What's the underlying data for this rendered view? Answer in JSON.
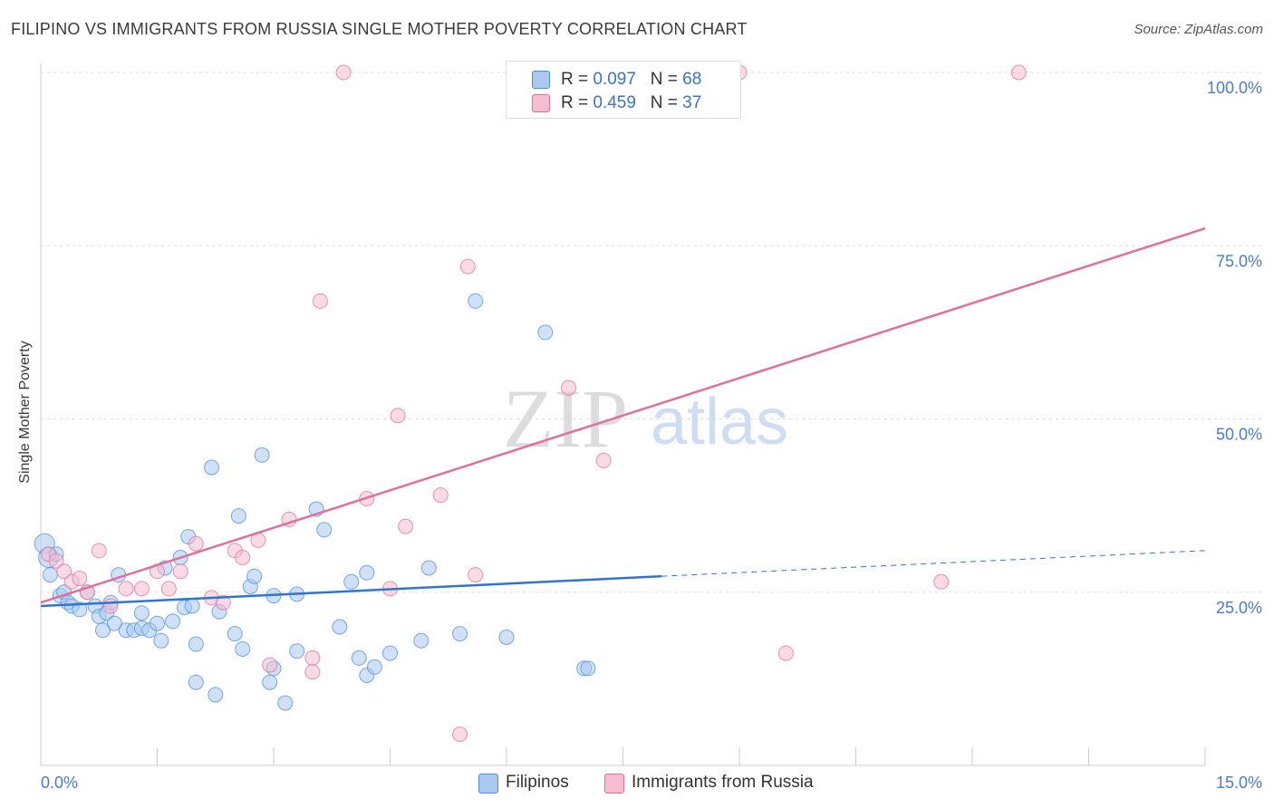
{
  "title": "FILIPINO VS IMMIGRANTS FROM RUSSIA SINGLE MOTHER POVERTY CORRELATION CHART",
  "source": "Source: ZipAtlas.com",
  "watermark": {
    "zip": "ZIP",
    "atlas": "atlas"
  },
  "chart_data": {
    "type": "scatter",
    "title": "FILIPINO VS IMMIGRANTS FROM RUSSIA SINGLE MOTHER POVERTY CORRELATION CHART",
    "xlabel": "",
    "ylabel": "Single Mother Poverty",
    "xlim": [
      0,
      15
    ],
    "ylim": [
      0,
      105
    ],
    "x_tick_labels": [
      "0.0%",
      "15.0%"
    ],
    "y_ticks": [
      25,
      50,
      75,
      100
    ],
    "y_tick_labels": [
      "25.0%",
      "50.0%",
      "75.0%",
      "100.0%"
    ],
    "grid": true,
    "legend_position": "top-center",
    "series": [
      {
        "name": "Filipinos",
        "color": "#4a8fdc",
        "fill": "#aac8f0",
        "r": "0.097",
        "n": "68",
        "trend": {
          "x": [
            0,
            8.0
          ],
          "y": [
            23.0,
            27.3
          ],
          "dashed_to_x": 15,
          "dashed_to_y": 31.0
        },
        "points": [
          [
            0.05,
            32.0
          ],
          [
            0.1,
            30.0
          ],
          [
            0.12,
            27.5
          ],
          [
            0.2,
            30.5
          ],
          [
            0.25,
            24.5
          ],
          [
            0.3,
            25.0
          ],
          [
            0.35,
            23.5
          ],
          [
            0.4,
            23.0
          ],
          [
            0.5,
            22.5
          ],
          [
            0.6,
            25.0
          ],
          [
            0.7,
            23.0
          ],
          [
            0.75,
            21.5
          ],
          [
            0.8,
            19.5
          ],
          [
            0.85,
            22.0
          ],
          [
            0.9,
            23.5
          ],
          [
            0.95,
            20.5
          ],
          [
            1.0,
            27.5
          ],
          [
            1.1,
            19.5
          ],
          [
            1.2,
            19.5
          ],
          [
            1.3,
            19.8
          ],
          [
            1.3,
            22.0
          ],
          [
            1.4,
            19.5
          ],
          [
            1.5,
            20.5
          ],
          [
            1.55,
            18.0
          ],
          [
            1.6,
            28.5
          ],
          [
            1.7,
            20.8
          ],
          [
            1.8,
            30.0
          ],
          [
            1.85,
            22.8
          ],
          [
            1.9,
            33.0
          ],
          [
            1.95,
            23.0
          ],
          [
            2.0,
            17.5
          ],
          [
            2.0,
            12.0
          ],
          [
            2.2,
            43.0
          ],
          [
            2.25,
            10.2
          ],
          [
            2.3,
            22.2
          ],
          [
            2.5,
            19.0
          ],
          [
            2.55,
            36.0
          ],
          [
            2.6,
            16.8
          ],
          [
            2.7,
            25.8
          ],
          [
            2.75,
            27.3
          ],
          [
            2.85,
            44.8
          ],
          [
            2.95,
            12.0
          ],
          [
            3.0,
            14.0
          ],
          [
            3.0,
            24.5
          ],
          [
            3.15,
            9.0
          ],
          [
            3.3,
            16.5
          ],
          [
            3.3,
            24.7
          ],
          [
            3.55,
            37.0
          ],
          [
            3.65,
            34.0
          ],
          [
            3.85,
            20.0
          ],
          [
            4.0,
            26.5
          ],
          [
            4.1,
            15.5
          ],
          [
            4.2,
            27.8
          ],
          [
            4.2,
            13.0
          ],
          [
            4.3,
            14.2
          ],
          [
            4.5,
            16.2
          ],
          [
            4.9,
            18.0
          ],
          [
            5.0,
            28.5
          ],
          [
            5.4,
            19.0
          ],
          [
            5.6,
            67.0
          ],
          [
            6.0,
            18.5
          ],
          [
            6.5,
            62.5
          ],
          [
            7.0,
            14.0
          ],
          [
            7.05,
            14.0
          ]
        ]
      },
      {
        "name": "Immigrants from Russia",
        "color": "#e0709a",
        "fill": "#f6bdd0",
        "r": "0.459",
        "n": "37",
        "trend": {
          "x": [
            0,
            15
          ],
          "y": [
            23.5,
            77.5
          ]
        },
        "points": [
          [
            0.1,
            30.5
          ],
          [
            0.2,
            29.5
          ],
          [
            0.3,
            28.0
          ],
          [
            0.4,
            26.5
          ],
          [
            0.5,
            27.0
          ],
          [
            0.6,
            25.0
          ],
          [
            0.75,
            31.0
          ],
          [
            0.9,
            23.0
          ],
          [
            1.1,
            25.5
          ],
          [
            1.3,
            25.5
          ],
          [
            1.5,
            28.0
          ],
          [
            1.65,
            25.5
          ],
          [
            1.8,
            28.0
          ],
          [
            2.0,
            32.0
          ],
          [
            2.2,
            24.2
          ],
          [
            2.35,
            23.5
          ],
          [
            2.5,
            31.0
          ],
          [
            2.6,
            30.0
          ],
          [
            2.8,
            32.5
          ],
          [
            2.95,
            14.5
          ],
          [
            3.2,
            35.5
          ],
          [
            3.5,
            15.5
          ],
          [
            3.5,
            13.5
          ],
          [
            3.6,
            67.0
          ],
          [
            3.9,
            100.0
          ],
          [
            4.2,
            38.5
          ],
          [
            4.5,
            25.5
          ],
          [
            4.6,
            50.5
          ],
          [
            4.7,
            34.5
          ],
          [
            5.15,
            39.0
          ],
          [
            5.4,
            4.5
          ],
          [
            5.5,
            72.0
          ],
          [
            5.6,
            27.5
          ],
          [
            6.8,
            54.5
          ],
          [
            7.25,
            44.0
          ],
          [
            9.0,
            100.0
          ],
          [
            9.6,
            16.2
          ],
          [
            11.6,
            26.5
          ],
          [
            12.6,
            100.0
          ]
        ]
      }
    ]
  }
}
